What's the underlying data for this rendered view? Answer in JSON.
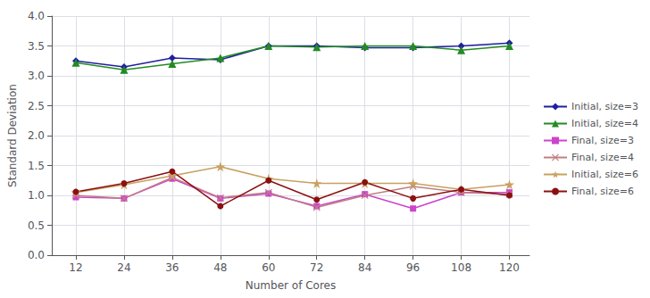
{
  "chart_data": {
    "type": "line",
    "xlabel": "Number of Cores",
    "ylabel": "Standard Deviation",
    "x": [
      12,
      24,
      36,
      48,
      60,
      72,
      84,
      96,
      108,
      120
    ],
    "series": [
      {
        "name": "Initial, size=3",
        "color": "#1F1FA0",
        "marker": "diamond",
        "values": [
          3.25,
          3.15,
          3.3,
          3.27,
          3.5,
          3.5,
          3.47,
          3.47,
          3.5,
          3.55
        ]
      },
      {
        "name": "Initial, size=4",
        "color": "#228B22",
        "marker": "triangle",
        "values": [
          3.22,
          3.1,
          3.2,
          3.3,
          3.5,
          3.48,
          3.5,
          3.5,
          3.43,
          3.5
        ]
      },
      {
        "name": "Final, size=3",
        "color": "#CC44CC",
        "marker": "square",
        "values": [
          0.97,
          0.95,
          1.28,
          0.95,
          1.03,
          0.82,
          1.02,
          0.78,
          1.05,
          1.05
        ]
      },
      {
        "name": "Final, size=4",
        "color": "#C08080",
        "marker": "x",
        "values": [
          1.0,
          0.95,
          1.3,
          0.96,
          1.05,
          0.8,
          1.0,
          1.15,
          1.05,
          1.02
        ]
      },
      {
        "name": "Initial, size=6",
        "color": "#C8A060",
        "marker": "star",
        "values": [
          1.05,
          1.18,
          1.33,
          1.48,
          1.28,
          1.2,
          1.2,
          1.2,
          1.1,
          1.18
        ]
      },
      {
        "name": "Final, size=6",
        "color": "#8B1010",
        "marker": "circle",
        "values": [
          1.06,
          1.2,
          1.4,
          0.82,
          1.25,
          0.93,
          1.22,
          0.95,
          1.1,
          1.0
        ]
      }
    ],
    "xlim": [
      6,
      125
    ],
    "xticks": [
      12,
      24,
      36,
      48,
      60,
      72,
      84,
      96,
      108,
      120
    ],
    "ylim": [
      0.0,
      4.0
    ],
    "yticks": [
      {
        "value": 0,
        "label": "0.0"
      },
      0.5,
      {
        "value": 1,
        "label": "1.0"
      },
      1.5,
      {
        "value": 2,
        "label": "2.0"
      },
      2.5,
      {
        "value": 3,
        "label": "3.0"
      },
      3.5,
      {
        "value": 4,
        "label": "4.0"
      }
    ],
    "grid": true,
    "legend": "right"
  }
}
